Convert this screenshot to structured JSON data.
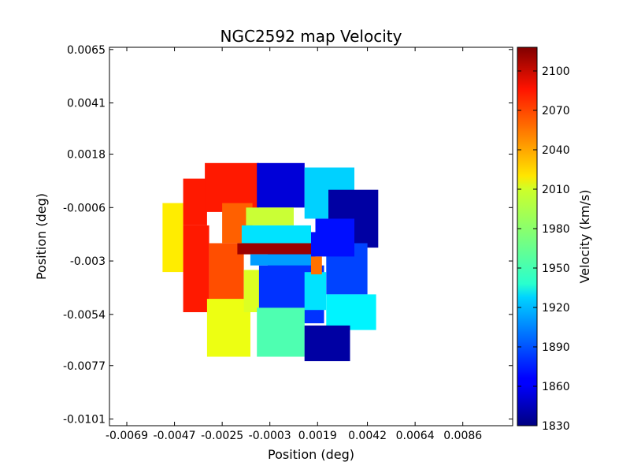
{
  "chart_data": {
    "type": "heatmap",
    "title": "NGC2592 map Velocity",
    "xlabel": "Position (deg)",
    "ylabel": "Position (deg)",
    "xlim": [
      -0.0077,
      0.0109
    ],
    "ylim": [
      -0.0104,
      0.0066
    ],
    "x_ticks": [
      {
        "value": -0.0069,
        "label": "-0.0069"
      },
      {
        "value": -0.0047,
        "label": "-0.0047"
      },
      {
        "value": -0.0025,
        "label": "-0.0025"
      },
      {
        "value": -0.0003,
        "label": "-0.0003"
      },
      {
        "value": 0.0019,
        "label": "0.0019"
      },
      {
        "value": 0.0042,
        "label": "0.0042"
      },
      {
        "value": 0.0064,
        "label": "0.0064"
      },
      {
        "value": 0.0086,
        "label": "0.0086"
      }
    ],
    "y_ticks": [
      {
        "value": 0.0065,
        "label": "0.0065"
      },
      {
        "value": 0.0041,
        "label": "0.0041"
      },
      {
        "value": 0.0018,
        "label": "0.0018"
      },
      {
        "value": -0.0006,
        "label": "-0.0006"
      },
      {
        "value": -0.003,
        "label": "-0.003"
      },
      {
        "value": -0.0054,
        "label": "-0.0054"
      },
      {
        "value": -0.0077,
        "label": "-0.0077"
      },
      {
        "value": -0.0101,
        "label": "-0.0101"
      }
    ],
    "colorbar": {
      "label": "Velocity (km/s)",
      "range": [
        1830,
        2118
      ],
      "colormap": "jet",
      "ticks": [
        1830,
        1860,
        1890,
        1920,
        1950,
        1980,
        2010,
        2040,
        2070,
        2100
      ]
    },
    "regions": [
      {
        "x": [
          -0.00525,
          -0.0043
        ],
        "y": [
          -0.0004,
          -0.0035
        ],
        "value": 2015
      },
      {
        "x": [
          -0.0043,
          -0.0032
        ],
        "y": [
          0.0007,
          -0.0014
        ],
        "value": 2075
      },
      {
        "x": [
          -0.0043,
          -0.0031
        ],
        "y": [
          -0.0014,
          -0.0053
        ],
        "value": 2075
      },
      {
        "x": [
          -0.0033,
          -0.0008
        ],
        "y": [
          0.0014,
          -0.0008
        ],
        "value": 2075
      },
      {
        "x": [
          -0.0025,
          -0.0011
        ],
        "y": [
          -0.0004,
          -0.0022
        ],
        "value": 2055
      },
      {
        "x": [
          -0.0031,
          -0.0015
        ],
        "y": [
          -0.0022,
          -0.0052
        ],
        "value": 2060
      },
      {
        "x": [
          -0.0032,
          -0.0012
        ],
        "y": [
          -0.0047,
          -0.0073
        ],
        "value": 2005
      },
      {
        "x": [
          -0.0015,
          0.0004
        ],
        "y": [
          -0.0034,
          -0.0053
        ],
        "value": 2000
      },
      {
        "x": [
          -0.0009,
          0.0013
        ],
        "y": [
          0.0014,
          -0.0006
        ],
        "value": 1855
      },
      {
        "x": [
          0.0013,
          0.0036
        ],
        "y": [
          0.0012,
          -0.0011
        ],
        "value": 1925
      },
      {
        "x": [
          0.0024,
          0.0047
        ],
        "y": [
          0.0002,
          -0.0024
        ],
        "value": 1840
      },
      {
        "x": [
          0.0023,
          0.0042
        ],
        "y": [
          -0.0022,
          -0.0045
        ],
        "value": 1885
      },
      {
        "x": [
          -0.0004,
          0.0018
        ],
        "y": [
          -0.0017,
          -0.0036
        ],
        "value": 1870
      },
      {
        "x": [
          0.0018,
          0.0036
        ],
        "y": [
          -0.0011,
          -0.0028
        ],
        "value": 1870
      },
      {
        "x": [
          -0.0008,
          0.0022
        ],
        "y": [
          -0.0032,
          -0.0058
        ],
        "value": 1880
      },
      {
        "x": [
          0.0013,
          0.0023
        ],
        "y": [
          -0.0035,
          -0.0052
        ],
        "value": 1930
      },
      {
        "x": [
          -0.0009,
          0.0013
        ],
        "y": [
          -0.0051,
          -0.0073
        ],
        "value": 1960
      },
      {
        "x": [
          0.0023,
          0.0046
        ],
        "y": [
          -0.0045,
          -0.0061
        ],
        "value": 1935
      },
      {
        "x": [
          0.0013,
          0.0034
        ],
        "y": [
          -0.0059,
          -0.0075
        ],
        "value": 1840
      },
      {
        "x": [
          -0.0014,
          0.0008
        ],
        "y": [
          -0.0006,
          -0.0014
        ],
        "value": 1995
      },
      {
        "x": [
          -0.0016,
          0.0016
        ],
        "y": [
          -0.0014,
          -0.0022
        ],
        "value": 1930
      },
      {
        "x": [
          -0.0018,
          0.0016
        ],
        "y": [
          -0.0022,
          -0.0027
        ],
        "value": 2110
      },
      {
        "x": [
          -0.0012,
          0.0016
        ],
        "y": [
          -0.0027,
          -0.0032
        ],
        "value": 1910
      },
      {
        "x": [
          0.0016,
          0.0021
        ],
        "y": [
          -0.0028,
          -0.0036
        ],
        "value": 2050
      }
    ]
  }
}
